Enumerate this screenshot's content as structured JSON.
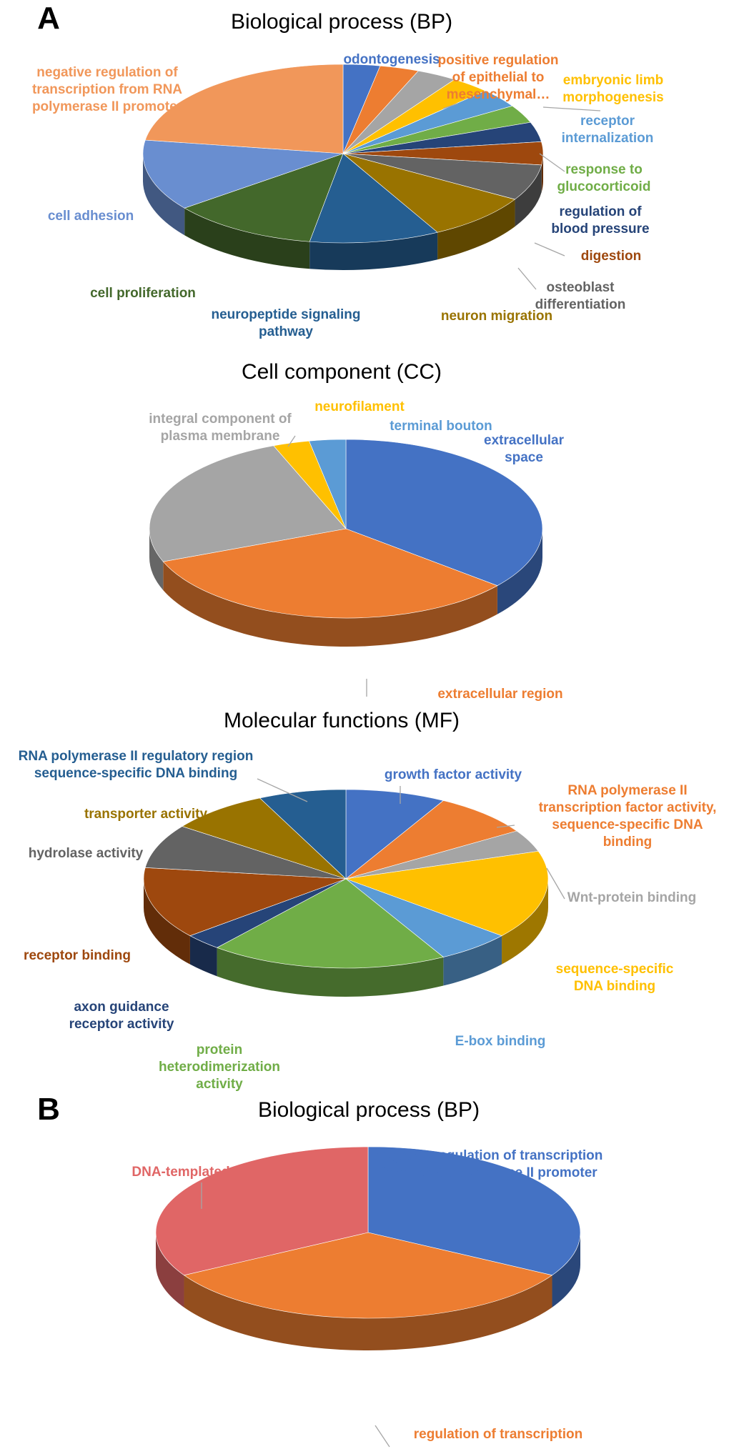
{
  "chart_data": [
    {
      "type": "pie",
      "panel": "A",
      "title": "Biological process (BP)",
      "slices": [
        {
          "label": "odontogenesis",
          "value": 3.0,
          "color": "#4472c4"
        },
        {
          "label": "positive regulation of epithelial to mesenchymal…",
          "value": 3.2,
          "color": "#ed7d31"
        },
        {
          "label": "",
          "value": 3.3,
          "color": "#a5a5a5"
        },
        {
          "label": "embryonic limb morphogenesis",
          "value": 3.2,
          "color": "#ffc000"
        },
        {
          "label": "receptor internalization",
          "value": 3.5,
          "color": "#5b9bd5"
        },
        {
          "label": "response to glucocorticoid",
          "value": 3.3,
          "color": "#70ad47"
        },
        {
          "label": "regulation of blood pressure",
          "value": 3.6,
          "color": "#264478"
        },
        {
          "label": "digestion",
          "value": 4.2,
          "color": "#9e480e"
        },
        {
          "label": "osteoblast differentiation",
          "value": 6.6,
          "color": "#636363"
        },
        {
          "label": "neuron migration",
          "value": 8.7,
          "color": "#997300"
        },
        {
          "label": "neuropeptide signaling pathway",
          "value": 10.6,
          "color": "#255e91"
        },
        {
          "label": "cell proliferation",
          "value": 12.0,
          "color": "#43682b"
        },
        {
          "label": "cell adhesion",
          "value": 13.0,
          "color": "#698ed0"
        },
        {
          "label": "negative regulation of transcription from RNA polymerase II promoter",
          "value": 22.8,
          "color": "#f1975a"
        }
      ]
    },
    {
      "type": "pie",
      "title": "Cell component (CC)",
      "slices": [
        {
          "label": "extracellular space",
          "value": 36.0,
          "color": "#4472c4"
        },
        {
          "label": "extracellular region",
          "value": 33.0,
          "color": "#ed7d31"
        },
        {
          "label": "integral component of plasma membrane",
          "value": 25.0,
          "color": "#a5a5a5"
        },
        {
          "label": "neurofilament",
          "value": 3.0,
          "color": "#ffc000"
        },
        {
          "label": "terminal bouton",
          "value": 3.0,
          "color": "#5b9bd5"
        }
      ]
    },
    {
      "type": "pie",
      "title": "Molecular functions (MF)",
      "slices": [
        {
          "label": "growth factor activity",
          "value": 8.0,
          "color": "#4472c4"
        },
        {
          "label": "RNA polymerase II transcription factor activity, sequence-specific DNA binding",
          "value": 8.0,
          "color": "#ed7d31"
        },
        {
          "label": "Wnt-protein binding",
          "value": 4.0,
          "color": "#a5a5a5"
        },
        {
          "label": "sequence-specific DNA binding",
          "value": 16.0,
          "color": "#ffc000"
        },
        {
          "label": "E-box binding",
          "value": 6.0,
          "color": "#5b9bd5"
        },
        {
          "label": "protein heterodimerization activity",
          "value": 19.0,
          "color": "#70ad47"
        },
        {
          "label": "axon guidance receptor activity",
          "value": 3.0,
          "color": "#264478"
        },
        {
          "label": "receptor binding",
          "value": 13.0,
          "color": "#9e480e"
        },
        {
          "label": "hydrolase activity",
          "value": 8.0,
          "color": "#636363"
        },
        {
          "label": "transporter activity",
          "value": 8.0,
          "color": "#997300"
        },
        {
          "label": "RNA polymerase II regulatory region sequence-specific DNA binding",
          "value": 7.0,
          "color": "#255e91"
        }
      ]
    },
    {
      "type": "pie",
      "panel": "B",
      "title": "Biological process (BP)",
      "slices": [
        {
          "label": "negative regulation of transcription from RNA polymerase II promoter",
          "value": 33.3,
          "color": "#4472c4"
        },
        {
          "label": "regulation of transcription",
          "value": 33.4,
          "color": "#ed7d31"
        },
        {
          "label": "DNA-templated",
          "value": 33.3,
          "color": "#e06666"
        }
      ]
    }
  ]
}
